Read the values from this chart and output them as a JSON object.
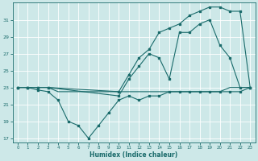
{
  "xlabel": "Humidex (Indice chaleur)",
  "bg_color": "#cde8e8",
  "line_color": "#1a6b6b",
  "grid_color": "#ffffff",
  "xlim": [
    -0.5,
    23.5
  ],
  "ylim": [
    16.5,
    33.0
  ],
  "yticks": [
    17,
    19,
    21,
    23,
    25,
    27,
    29,
    31
  ],
  "xticks": [
    0,
    1,
    2,
    3,
    4,
    5,
    6,
    7,
    8,
    9,
    10,
    11,
    12,
    13,
    14,
    15,
    16,
    17,
    18,
    19,
    20,
    21,
    22,
    23
  ],
  "line_flat": {
    "x": [
      0,
      1,
      2,
      3,
      4,
      5,
      6,
      7,
      8,
      9,
      10,
      11,
      12,
      13,
      14,
      15,
      16,
      17,
      18,
      19,
      20,
      21,
      22,
      23
    ],
    "y": [
      23,
      23,
      23,
      23,
      22.5,
      22.5,
      22.5,
      22.5,
      22.5,
      22.5,
      22.5,
      22.5,
      22.5,
      22.5,
      22.5,
      22.5,
      22.5,
      22.5,
      22.5,
      22.5,
      22.5,
      23,
      23,
      23
    ]
  },
  "line_dip": {
    "x": [
      0,
      1,
      2,
      3,
      4,
      5,
      6,
      7,
      8,
      9,
      10,
      11,
      12,
      13,
      14,
      15,
      16,
      17,
      18,
      19,
      20,
      21,
      22,
      23
    ],
    "y": [
      23,
      23,
      22.7,
      22.5,
      21.5,
      19.0,
      18.5,
      17.0,
      18.5,
      20.0,
      21.5,
      22.0,
      21.5,
      22.0,
      22.0,
      22.5,
      22.5,
      22.5,
      22.5,
      22.5,
      22.5,
      22.5,
      22.5,
      23
    ]
  },
  "line_mid": {
    "x": [
      0,
      1,
      2,
      3,
      10,
      11,
      12,
      13,
      14,
      15,
      16,
      17,
      18,
      19,
      20,
      21,
      22,
      23
    ],
    "y": [
      23,
      23,
      23,
      23,
      22,
      24,
      25.5,
      27,
      26.5,
      24,
      29.5,
      29.5,
      30.5,
      31,
      28,
      26.5,
      23,
      23
    ]
  },
  "line_top": {
    "x": [
      0,
      1,
      2,
      3,
      10,
      11,
      12,
      13,
      14,
      15,
      16,
      17,
      18,
      19,
      20,
      21,
      22,
      23
    ],
    "y": [
      23,
      23,
      23,
      23,
      22.5,
      24.5,
      26.5,
      27.5,
      29.5,
      30,
      30.5,
      31.5,
      32,
      32.5,
      32.5,
      32,
      32,
      23
    ]
  }
}
